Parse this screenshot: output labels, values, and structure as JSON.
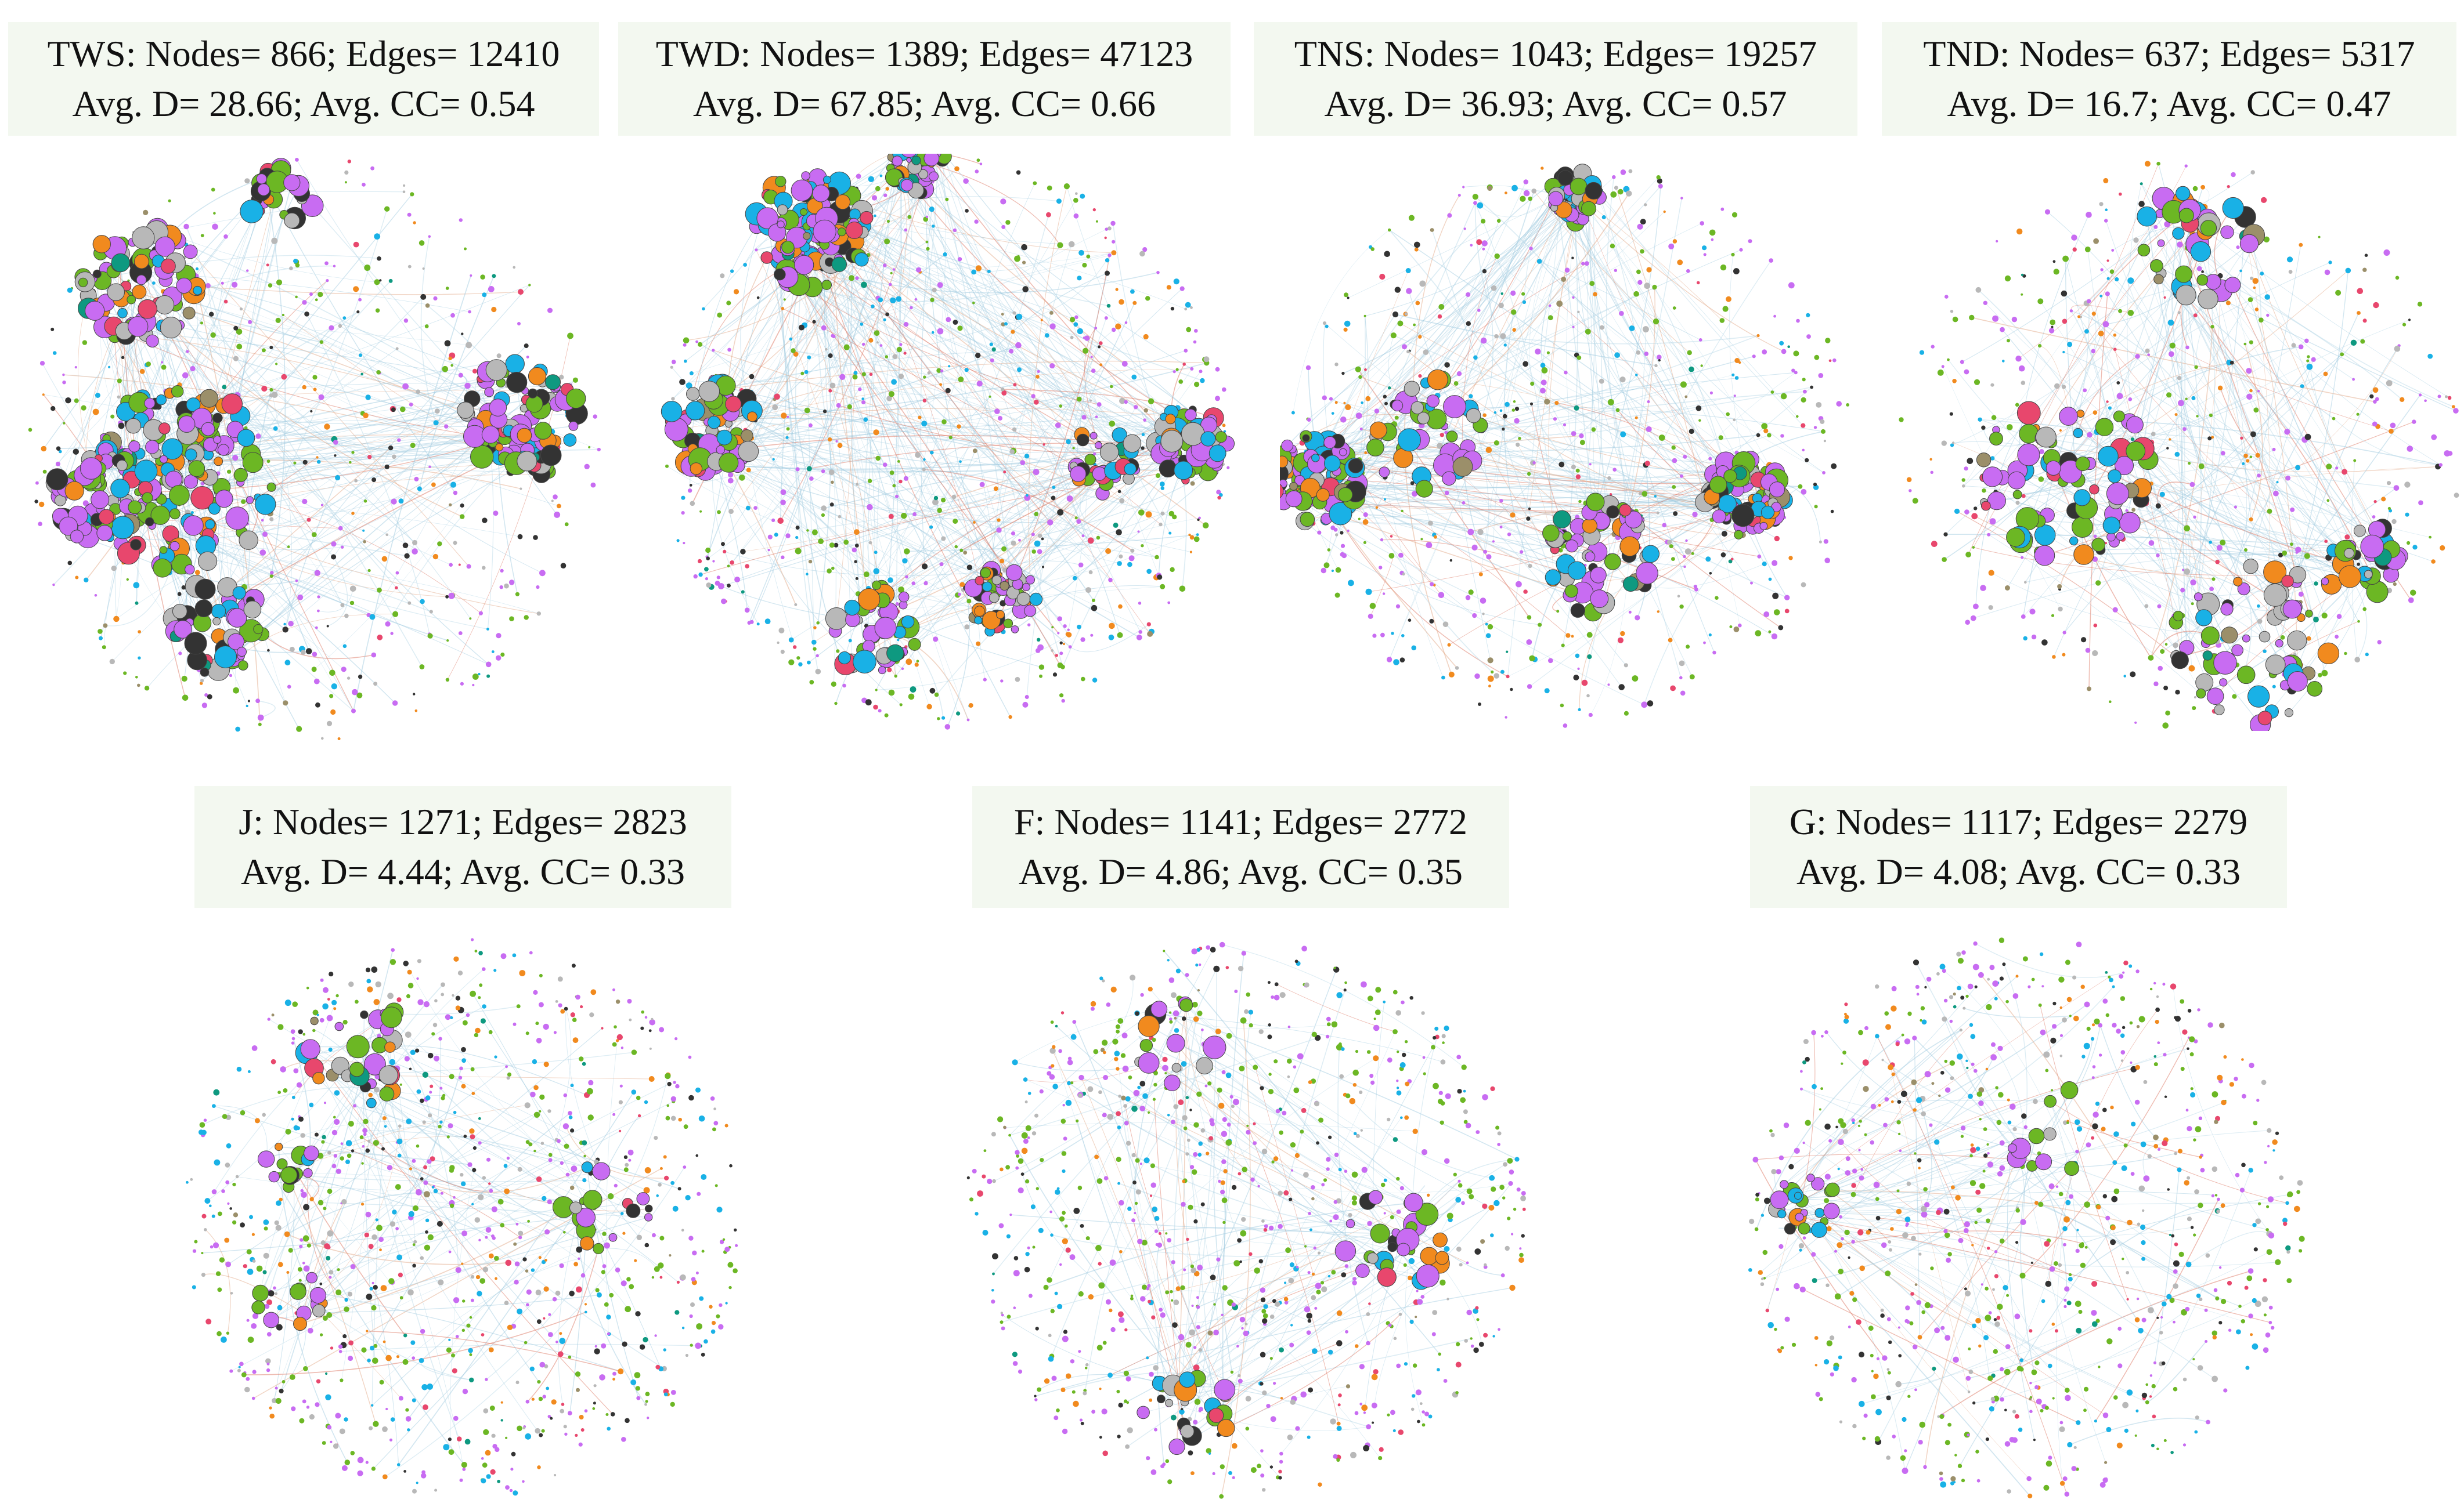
{
  "palette": [
    "#c86cf2",
    "#6cb724",
    "#19b1e6",
    "#333333",
    "#b8b8b8",
    "#f18a1e",
    "#e8476d",
    "#0e9980",
    "#9b8f6a"
  ],
  "edge_colors": [
    "#9cc8de",
    "#b6d6e6",
    "#e0a27e",
    "#d96a55"
  ],
  "networks": [
    {
      "id": "tws",
      "line1": "TWS: Nodes= 866; Edges= 12410",
      "line2": "Avg. D= 28.66; Avg. CC= 0.54",
      "stats": {
        "nodes": 866,
        "edges": 12410,
        "avg_degree": 28.66,
        "avg_cc": 0.54
      }
    },
    {
      "id": "twd",
      "line1": "TWD: Nodes= 1389; Edges= 47123",
      "line2": "Avg. D= 67.85; Avg. CC= 0.66",
      "stats": {
        "nodes": 1389,
        "edges": 47123,
        "avg_degree": 67.85,
        "avg_cc": 0.66
      }
    },
    {
      "id": "tns",
      "line1": "TNS: Nodes= 1043; Edges= 19257",
      "line2": "Avg. D= 36.93; Avg. CC= 0.57",
      "stats": {
        "nodes": 1043,
        "edges": 19257,
        "avg_degree": 36.93,
        "avg_cc": 0.57
      }
    },
    {
      "id": "tnd",
      "line1": "TND: Nodes= 637; Edges= 5317",
      "line2": "Avg. D= 16.7; Avg. CC= 0.47",
      "stats": {
        "nodes": 637,
        "edges": 5317,
        "avg_degree": 16.7,
        "avg_cc": 0.47
      }
    },
    {
      "id": "j",
      "line1": "J: Nodes= 1271; Edges= 2823",
      "line2": "Avg. D= 4.44; Avg. CC= 0.33",
      "stats": {
        "nodes": 1271,
        "edges": 2823,
        "avg_degree": 4.44,
        "avg_cc": 0.33
      }
    },
    {
      "id": "f",
      "line1": "F: Nodes= 1141; Edges= 2772",
      "line2": "Avg. D= 4.86; Avg. CC= 0.35",
      "stats": {
        "nodes": 1141,
        "edges": 2772,
        "avg_degree": 4.86,
        "avg_cc": 0.35
      }
    },
    {
      "id": "g",
      "line1": "G: Nodes= 1117; Edges= 2279",
      "line2": "Avg. D= 4.08; Avg. CC= 0.33",
      "stats": {
        "nodes": 1117,
        "edges": 2279,
        "avg_degree": 4.08,
        "avg_cc": 0.33
      }
    }
  ]
}
